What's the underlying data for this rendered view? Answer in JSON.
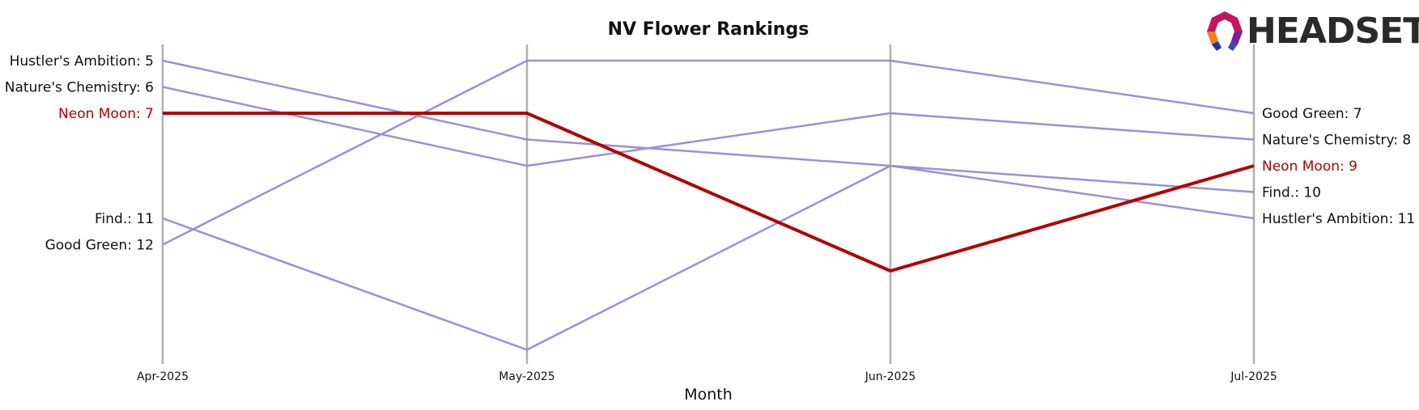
{
  "chart_data": {
    "type": "line",
    "title": "NV Flower Rankings",
    "xlabel": "Month",
    "ylabel": "",
    "x": [
      "Apr-2025",
      "May-2025",
      "Jun-2025",
      "Jul-2025"
    ],
    "ylim": [
      16,
      4
    ],
    "y_inverted": true,
    "grid": false,
    "series": [
      {
        "name": "Hustler's Ambition",
        "values": [
          5,
          8,
          9,
          11
        ],
        "highlight": false
      },
      {
        "name": "Nature's Chemistry",
        "values": [
          6,
          9,
          7,
          8
        ],
        "highlight": false
      },
      {
        "name": "Neon Moon",
        "values": [
          7,
          7,
          13,
          9
        ],
        "highlight": true
      },
      {
        "name": "Find.",
        "values": [
          11,
          16,
          9,
          10
        ],
        "highlight": false
      },
      {
        "name": "Good Green",
        "values": [
          12,
          5,
          5,
          7
        ],
        "highlight": false
      }
    ],
    "left_labels": [
      "Hustler's Ambition: 5",
      "Nature's Chemistry: 6",
      "Neon Moon: 7",
      "Find.: 11",
      "Good Green: 12"
    ],
    "right_labels": [
      "Good Green: 7",
      "Nature's Chemistry: 8",
      "Neon Moon: 9",
      "Find.: 10",
      "Hustler's Ambition: 11"
    ]
  },
  "logo": {
    "text": "HEADSET"
  },
  "colors": {
    "normal": "#9b8fdb",
    "highlight": "#b30000",
    "axis": "#b0b0b0",
    "text": "#111111"
  }
}
